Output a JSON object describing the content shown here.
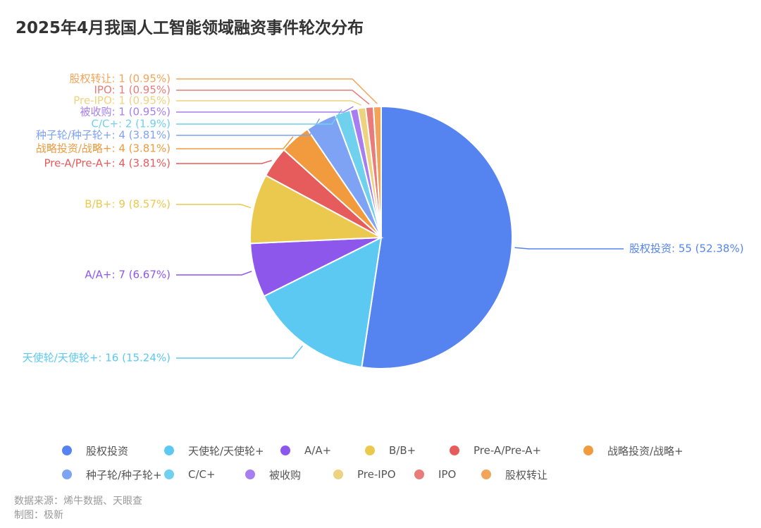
{
  "title": "2025年4月我国人工智能领域融资事件轮次分布",
  "chart_data": {
    "type": "pie",
    "title": "2025年4月我国人工智能领域融资事件轮次分布",
    "legend_position": "bottom",
    "slices": [
      {
        "name": "股权投资",
        "value": 55,
        "percent": "52.38%",
        "label": "股权投资: 55 (52.38%)",
        "color": "#5584f0"
      },
      {
        "name": "天使轮/天使轮+",
        "value": 16,
        "percent": "15.24%",
        "label": "天使轮/天使轮+: 16 (15.24%)",
        "color": "#5cc9f2"
      },
      {
        "name": "A/A+",
        "value": 7,
        "percent": "6.67%",
        "label": "A/A+: 7 (6.67%)",
        "color": "#8e57ec"
      },
      {
        "name": "B/B+",
        "value": 9,
        "percent": "8.57%",
        "label": "B/B+: 9 (8.57%)",
        "color": "#ebc94e"
      },
      {
        "name": "Pre-A/Pre-A+",
        "value": 4,
        "percent": "3.81%",
        "label": "Pre-A/Pre-A+: 4 (3.81%)",
        "color": "#e65b5b"
      },
      {
        "name": "战略投资/战略+",
        "value": 4,
        "percent": "3.81%",
        "label": "战略投资/战略+: 4 (3.81%)",
        "color": "#f19a3e"
      },
      {
        "name": "种子轮/种子轮+",
        "value": 4,
        "percent": "3.81%",
        "label": "种子轮/种子轮+: 4 (3.81%)",
        "color": "#7ea3f4"
      },
      {
        "name": "C/C+",
        "value": 2,
        "percent": "1.9%",
        "label": "C/C+: 2 (1.9%)",
        "color": "#6fd1ee"
      },
      {
        "name": "被收购",
        "value": 1,
        "percent": "0.95%",
        "label": "被收购: 1 (0.95%)",
        "color": "#a77ef0"
      },
      {
        "name": "Pre-IPO",
        "value": 1,
        "percent": "0.95%",
        "label": "Pre-IPO: 1 (0.95%)",
        "color": "#edd27f"
      },
      {
        "name": "IPO",
        "value": 1,
        "percent": "0.95%",
        "label": "IPO: 1 (0.95%)",
        "color": "#ea7b7b"
      },
      {
        "name": "股权转让",
        "value": 1,
        "percent": "0.95%",
        "label": "股权转让: 1 (0.95%)",
        "color": "#f2a55a"
      }
    ]
  },
  "legend_rows": [
    [
      "股权投资",
      "天使轮/天使轮+",
      "A/A+",
      "B/B+",
      "Pre-A/Pre-A+",
      "战略投资/战略+"
    ],
    [
      "种子轮/种子轮+",
      "C/C+",
      "被收购",
      "Pre-IPO",
      "IPO",
      "股权转让"
    ]
  ],
  "source": {
    "line1": "数据来源：烯牛数据、天眼查",
    "line2": "制图：极新"
  }
}
